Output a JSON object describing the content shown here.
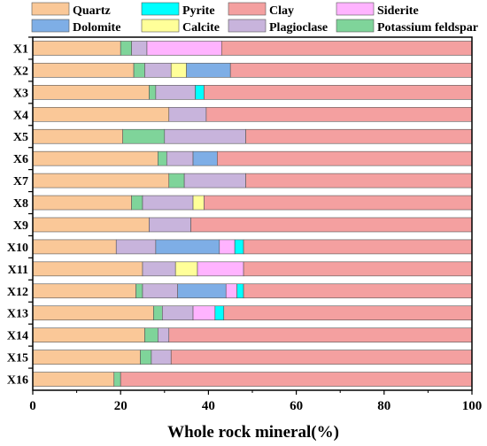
{
  "chart_data": {
    "type": "bar",
    "orientation": "horizontal",
    "stacked": true,
    "title": "",
    "xlabel": "Whole rock mineral(%)",
    "ylabel": "",
    "xlim": [
      0,
      100
    ],
    "xticks": [
      "0",
      "20",
      "40",
      "60",
      "80",
      "100"
    ],
    "grid": false,
    "legend_position": "top",
    "categories": [
      "X1",
      "X2",
      "X3",
      "X4",
      "X5",
      "X6",
      "X7",
      "X8",
      "X9",
      "X10",
      "X11",
      "X12",
      "X13",
      "X14",
      "X15",
      "X16"
    ],
    "series": [
      {
        "name": "Quartz",
        "color": "#fac898",
        "values": [
          20.0,
          23.0,
          26.5,
          31.0,
          20.5,
          28.5,
          31.0,
          22.5,
          26.5,
          19.0,
          25.0,
          23.5,
          27.5,
          25.5,
          24.5,
          18.5
        ]
      },
      {
        "name": "Potassium feldspar",
        "color": "#7fd49a",
        "values": [
          2.5,
          2.5,
          1.5,
          0,
          9.5,
          2.0,
          3.5,
          2.5,
          0,
          0,
          0,
          1.5,
          2.0,
          3.0,
          2.5,
          1.5
        ]
      },
      {
        "name": "Plagioclase",
        "color": "#c8b4dc",
        "values": [
          3.5,
          6.0,
          9.0,
          8.5,
          18.5,
          6.0,
          14.0,
          11.5,
          9.5,
          9.0,
          7.5,
          8.0,
          7.0,
          2.5,
          4.5,
          0
        ]
      },
      {
        "name": "Calcite",
        "color": "#ffff99",
        "values": [
          0,
          3.5,
          0,
          0,
          0,
          0,
          0,
          2.5,
          0,
          0,
          5.0,
          0,
          0,
          0,
          0,
          0
        ]
      },
      {
        "name": "Dolomite",
        "color": "#7eaee6",
        "values": [
          0,
          10.0,
          0,
          0,
          0,
          5.5,
          0,
          0,
          0,
          14.5,
          0,
          11.0,
          0,
          0,
          0,
          0
        ]
      },
      {
        "name": "Siderite",
        "color": "#ffb3ff",
        "values": [
          17.0,
          0,
          0,
          0,
          0,
          0,
          0,
          0,
          0,
          3.5,
          10.5,
          2.5,
          5.0,
          0,
          0,
          0
        ]
      },
      {
        "name": "Pyrite",
        "color": "#00ffff",
        "values": [
          0,
          0,
          2.0,
          0,
          0,
          0,
          0,
          0,
          0,
          2.0,
          0,
          1.5,
          2.0,
          0,
          0,
          0
        ]
      },
      {
        "name": "Clay",
        "color": "#f4a0a0",
        "values": [
          57.0,
          55.0,
          61.0,
          60.5,
          51.5,
          58.0,
          51.5,
          61.0,
          64.0,
          52.0,
          52.0,
          52.0,
          56.5,
          69.0,
          68.5,
          80.0
        ]
      }
    ],
    "legend_order": [
      "Quartz",
      "Pyrite",
      "Clay",
      "Siderite",
      "Dolomite",
      "Calcite",
      "Plagioclase",
      "Potassium feldspar"
    ]
  }
}
